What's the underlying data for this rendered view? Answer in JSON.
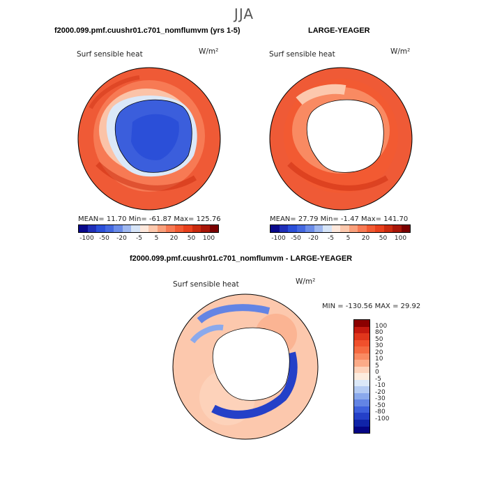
{
  "season": "JJA",
  "panels": {
    "top_left": {
      "title": "f2000.099.pmf.cuushr01.c701_nomflumvm (yrs 1-5)",
      "variable": "Surf sensible heat",
      "units": "W/m²",
      "stats": "MEAN=  11.70   Min= -61.87   Max= 125.76"
    },
    "top_right": {
      "title": "LARGE-YEAGER",
      "variable": "Surf sensible heat",
      "units": "W/m²",
      "stats": "MEAN=  27.79   Min=  -1.47   Max= 141.70"
    },
    "bottom": {
      "title": "f2000.099.pmf.cuushr01.c701_nomflumvm - LARGE-YEAGER",
      "variable": "Surf sensible heat",
      "units": "W/m²",
      "stats": "MIN = -130.56  MAX =  29.92"
    }
  },
  "colorbar_top": {
    "colors": [
      "#08088a",
      "#1f2fb8",
      "#2b4fd8",
      "#4468e0",
      "#6b8ce8",
      "#9fb8f0",
      "#d6e4f7",
      "#fde8dc",
      "#fcc8ad",
      "#f9a07c",
      "#f77a54",
      "#f25a32",
      "#e8401c",
      "#c92a0e",
      "#a81608",
      "#7a0000"
    ],
    "labels": [
      "-100",
      "-50",
      "-20",
      "-5",
      "5",
      "20",
      "50",
      "100"
    ]
  },
  "colorbar_bottom": {
    "colors": [
      "#8b0000",
      "#c4190f",
      "#e0361c",
      "#f0502c",
      "#f56a41",
      "#f98a62",
      "#fbab88",
      "#fdd2ba",
      "#fdecde",
      "#dbe8f8",
      "#b4cbf3",
      "#8aa9ec",
      "#6384e4",
      "#3e60dc",
      "#2440c8",
      "#1024a8",
      "#050585"
    ],
    "labels": [
      "100",
      "80",
      "50",
      "30",
      "20",
      "10",
      "5",
      "0",
      "-5",
      "-10",
      "-20",
      "-30",
      "-50",
      "-80",
      "-100"
    ]
  },
  "icons": {
    "map": "polar-stereographic-map"
  }
}
